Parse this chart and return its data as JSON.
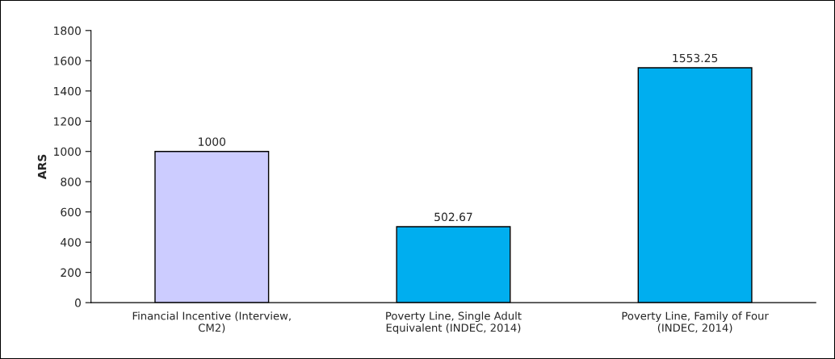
{
  "chart_data": {
    "type": "bar",
    "ylabel": "ARS",
    "categories": [
      "Financial Incentive (Interview,\nCM2)",
      "Poverty Line, Single Adult\nEquivalent (INDEC, 2014)",
      "Poverty Line, Family of Four\n(INDEC, 2014)"
    ],
    "values": [
      1000,
      502.67,
      1553.25
    ],
    "colors": [
      "#ccccff",
      "#00aeef",
      "#00aeef"
    ],
    "ylim": [
      0,
      1800
    ],
    "yticks": [
      0,
      200,
      400,
      600,
      800,
      1000,
      1200,
      1400,
      1600,
      1800
    ],
    "data_labels": true,
    "grid": false,
    "legend": false
  }
}
